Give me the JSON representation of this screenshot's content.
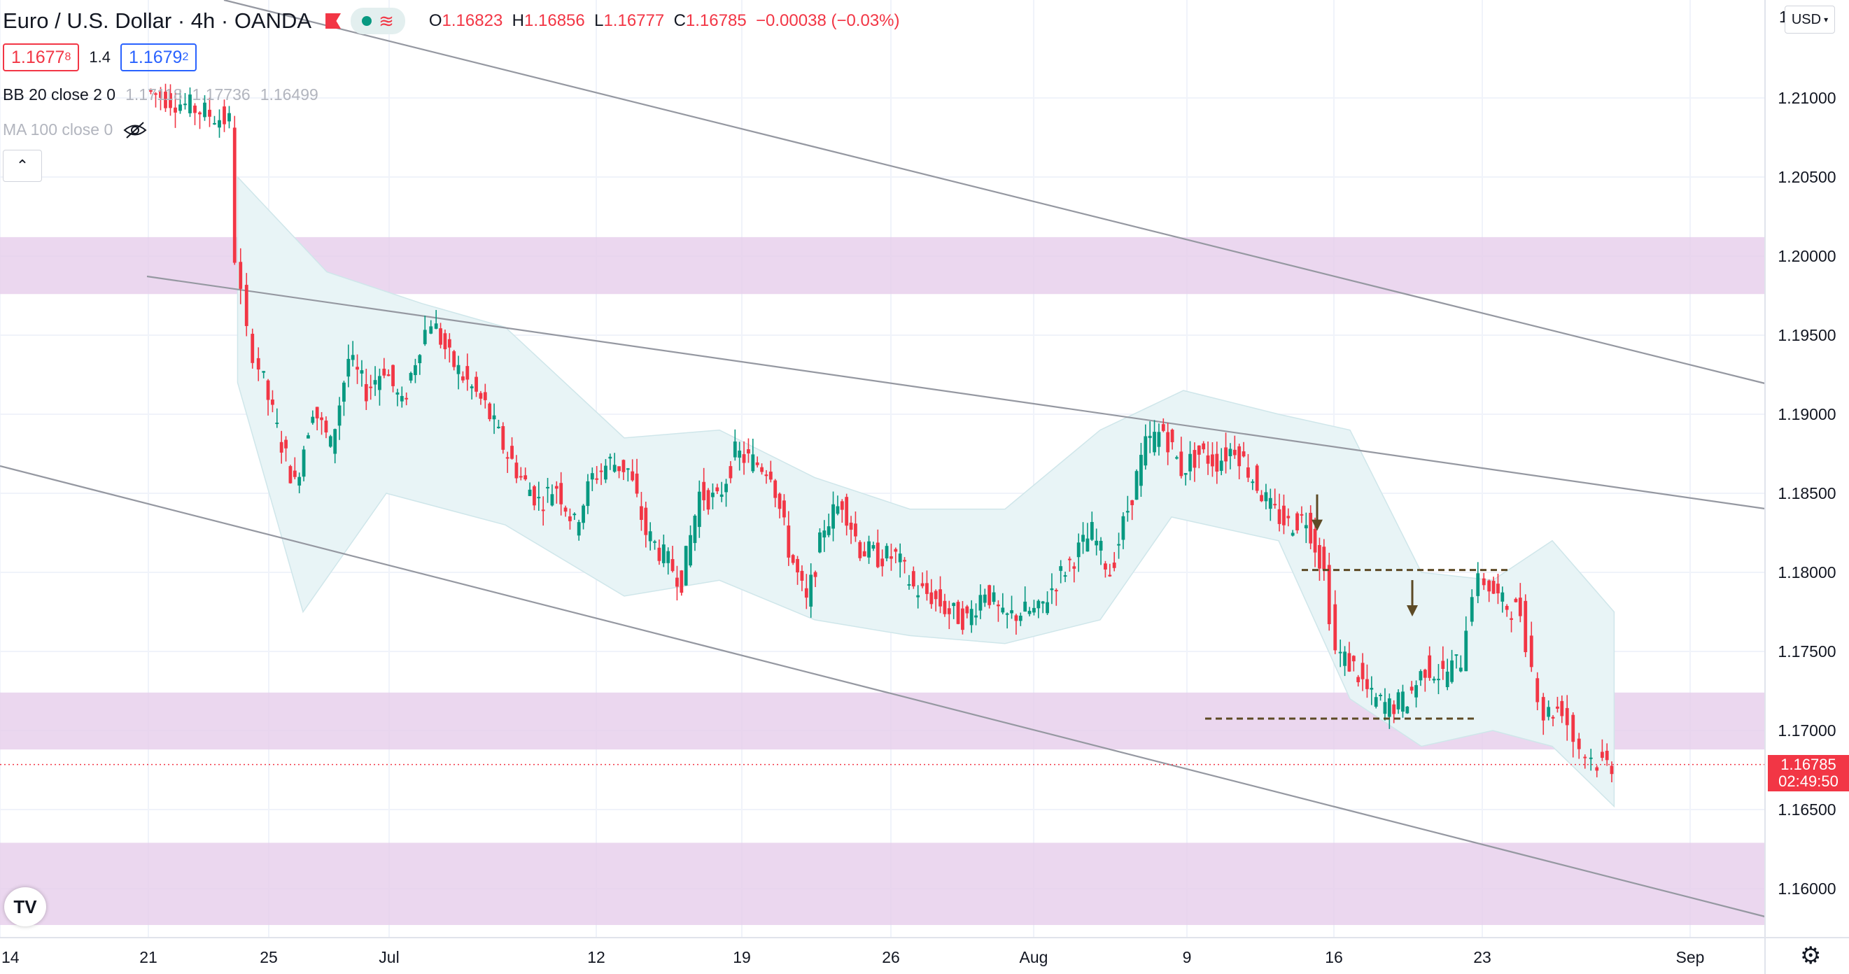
{
  "header": {
    "symbol": "Euro / U.S. Dollar",
    "interval": "4h",
    "exchange": "OANDA",
    "open_key": "O",
    "open": "1.16823",
    "high_key": "H",
    "high": "1.16856",
    "low_key": "L",
    "low": "1.16777",
    "close_key": "C",
    "close": "1.16785",
    "change": "−0.00038 (−0.03%)"
  },
  "trade": {
    "sell_price": "1.1677",
    "sell_super": "8",
    "spread": "1.4",
    "buy_price": "1.1679",
    "buy_super": "2"
  },
  "indicators": {
    "bb_name": "BB 20 close 2 0",
    "bb_basis": "1.17118",
    "bb_upper": "1.17736",
    "bb_lower": "1.16499",
    "ma_name": "MA 100 close 0"
  },
  "price_axis": {
    "currency": "USD",
    "top_label": "1",
    "ticks": [
      "1.21000",
      "1.20500",
      "1.20000",
      "1.19500",
      "1.19000",
      "1.18500",
      "1.18000",
      "1.17500",
      "1.17000",
      "1.16500",
      "1.16000"
    ],
    "last_price": "1.16785",
    "countdown": "02:49:50"
  },
  "time_axis": {
    "labels": [
      "14",
      "21",
      "25",
      "Jul",
      "12",
      "19",
      "26",
      "Aug",
      "9",
      "16",
      "23",
      "Sep"
    ]
  },
  "colors": {
    "up": "#089981",
    "down": "#f23645",
    "zone": "#e6cdeb",
    "channel": "#9598a1",
    "bb_fill": "#e8f4f6",
    "marker": "#5d4a25"
  },
  "chart_data": {
    "type": "candlestick",
    "symbol": "Euro / U.S. Dollar",
    "timeframe": "4h",
    "ylim": [
      1.158,
      1.2135
    ],
    "grid": true,
    "support_resistance_zones": [
      [
        1.1976,
        1.2012
      ],
      [
        1.1688,
        1.1724
      ],
      [
        1.1577,
        1.1629
      ]
    ],
    "horizontal_levels": [
      1.18015,
      1.17075
    ],
    "price_path": [
      [
        0.0,
        1.2105
      ],
      [
        70,
        1.2085
      ],
      [
        75,
        1.2
      ],
      [
        85,
        1.195
      ],
      [
        95,
        1.193
      ],
      [
        110,
        1.189
      ],
      [
        125,
        1.1855
      ],
      [
        140,
        1.1905
      ],
      [
        155,
        1.188
      ],
      [
        170,
        1.1935
      ],
      [
        185,
        1.1915
      ],
      [
        200,
        1.193
      ],
      [
        215,
        1.1905
      ],
      [
        230,
        1.1945
      ],
      [
        240,
        1.196
      ],
      [
        255,
        1.1935
      ],
      [
        270,
        1.192
      ],
      [
        285,
        1.1905
      ],
      [
        300,
        1.188
      ],
      [
        315,
        1.186
      ],
      [
        330,
        1.1845
      ],
      [
        345,
        1.1855
      ],
      [
        360,
        1.183
      ],
      [
        375,
        1.186
      ],
      [
        390,
        1.187
      ],
      [
        405,
        1.1865
      ],
      [
        420,
        1.1825
      ],
      [
        435,
        1.181
      ],
      [
        450,
        1.1795
      ],
      [
        465,
        1.185
      ],
      [
        480,
        1.1845
      ],
      [
        495,
        1.1875
      ],
      [
        510,
        1.187
      ],
      [
        525,
        1.1865
      ],
      [
        540,
        1.1815
      ],
      [
        555,
        1.178
      ],
      [
        570,
        1.183
      ],
      [
        585,
        1.1845
      ],
      [
        600,
        1.1815
      ],
      [
        615,
        1.181
      ],
      [
        630,
        1.181
      ],
      [
        645,
        1.179
      ],
      [
        660,
        1.1785
      ],
      [
        675,
        1.1775
      ],
      [
        690,
        1.177
      ],
      [
        705,
        1.179
      ],
      [
        720,
        1.177
      ],
      [
        735,
        1.1775
      ],
      [
        750,
        1.1775
      ],
      [
        765,
        1.1795
      ],
      [
        780,
        1.181
      ],
      [
        795,
        1.1825
      ],
      [
        810,
        1.18
      ],
      [
        825,
        1.184
      ],
      [
        840,
        1.188
      ],
      [
        855,
        1.189
      ],
      [
        870,
        1.1865
      ],
      [
        885,
        1.1875
      ],
      [
        900,
        1.187
      ],
      [
        915,
        1.188
      ],
      [
        930,
        1.186
      ],
      [
        945,
        1.184
      ],
      [
        960,
        1.183
      ],
      [
        975,
        1.1835
      ],
      [
        990,
        1.18
      ],
      [
        1000,
        1.175
      ],
      [
        1015,
        1.174
      ],
      [
        1030,
        1.172
      ],
      [
        1045,
        1.1715
      ],
      [
        1060,
        1.172
      ],
      [
        1075,
        1.174
      ],
      [
        1090,
        1.1735
      ],
      [
        1105,
        1.1745
      ],
      [
        1115,
        1.179
      ],
      [
        1125,
        1.1795
      ],
      [
        1140,
        1.178
      ],
      [
        1155,
        1.1775
      ],
      [
        1165,
        1.174
      ],
      [
        1175,
        1.171
      ],
      [
        1190,
        1.1715
      ],
      [
        1200,
        1.1695
      ],
      [
        1210,
        1.1685
      ],
      [
        1220,
        1.168
      ],
      [
        1232,
        1.16785
      ]
    ],
    "bb_upper_path": [
      [
        75,
        1.205
      ],
      [
        150,
        1.199
      ],
      [
        230,
        1.197
      ],
      [
        300,
        1.1955
      ],
      [
        400,
        1.1885
      ],
      [
        480,
        1.189
      ],
      [
        560,
        1.186
      ],
      [
        640,
        1.184
      ],
      [
        720,
        1.184
      ],
      [
        800,
        1.189
      ],
      [
        870,
        1.1915
      ],
      [
        950,
        1.19
      ],
      [
        1010,
        1.189
      ],
      [
        1070,
        1.18
      ],
      [
        1130,
        1.1795
      ],
      [
        1180,
        1.182
      ],
      [
        1232,
        1.1775
      ]
    ],
    "bb_lower_path": [
      [
        75,
        1.192
      ],
      [
        130,
        1.1775
      ],
      [
        200,
        1.185
      ],
      [
        300,
        1.183
      ],
      [
        400,
        1.1785
      ],
      [
        480,
        1.1795
      ],
      [
        560,
        1.177
      ],
      [
        640,
        1.176
      ],
      [
        720,
        1.1755
      ],
      [
        800,
        1.177
      ],
      [
        860,
        1.1835
      ],
      [
        950,
        1.182
      ],
      [
        1010,
        1.172
      ],
      [
        1070,
        1.169
      ],
      [
        1130,
        1.17
      ],
      [
        1180,
        1.169
      ],
      [
        1232,
        1.1652
      ]
    ],
    "annotations": [
      "down arrow at 1.18015 level",
      "down arrow at 1.17075 level"
    ]
  }
}
